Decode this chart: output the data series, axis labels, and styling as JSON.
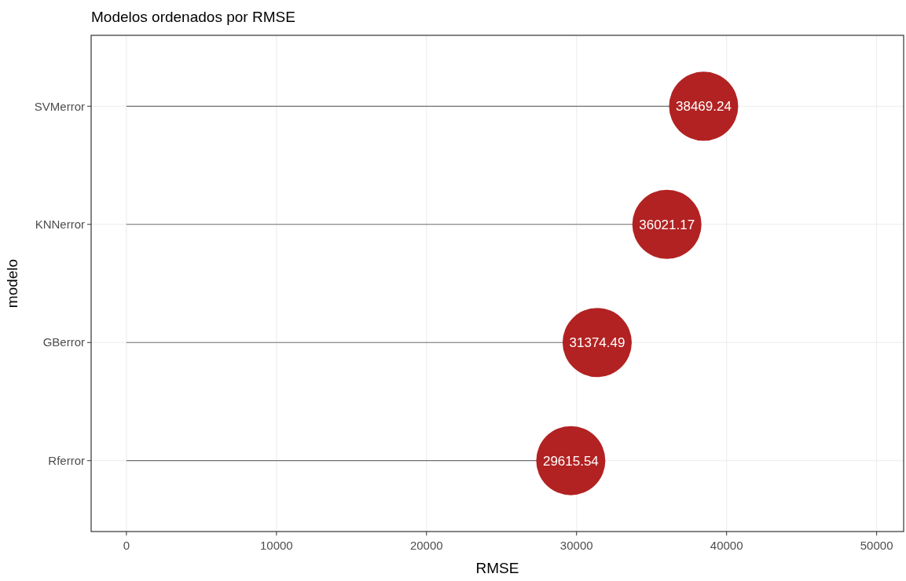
{
  "chart_data": {
    "type": "lollipop",
    "orientation": "horizontal",
    "title": "Modelos ordenados por RMSE",
    "xlabel": "RMSE",
    "ylabel": "modelo",
    "categories": [
      "SVMerror",
      "KNNerror",
      "GBerror",
      "Rferror"
    ],
    "values": [
      38469.24,
      36021.17,
      31374.49,
      29615.54
    ],
    "color": "#b22222",
    "data_labels": true,
    "xlim": [
      -2350,
      51800
    ],
    "xticks": [
      0,
      10000,
      20000,
      30000,
      40000,
      50000
    ],
    "grid": true
  }
}
